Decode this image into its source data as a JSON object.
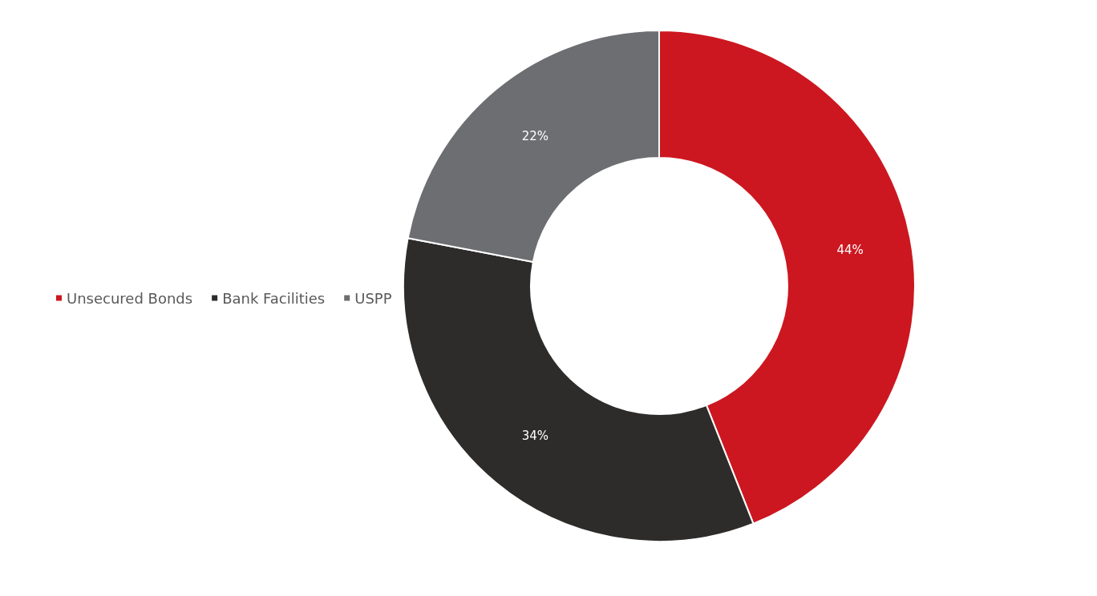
{
  "chart_data": {
    "type": "donut",
    "categories": [
      "Unsecured Bonds",
      "Bank Facilities",
      "USPP"
    ],
    "values": [
      44,
      34,
      22
    ],
    "colors": [
      "#cc1720",
      "#2d2c2b",
      "#6d6e71"
    ],
    "value_labels": [
      "44%",
      "34%",
      "22%"
    ],
    "legend": "left"
  }
}
